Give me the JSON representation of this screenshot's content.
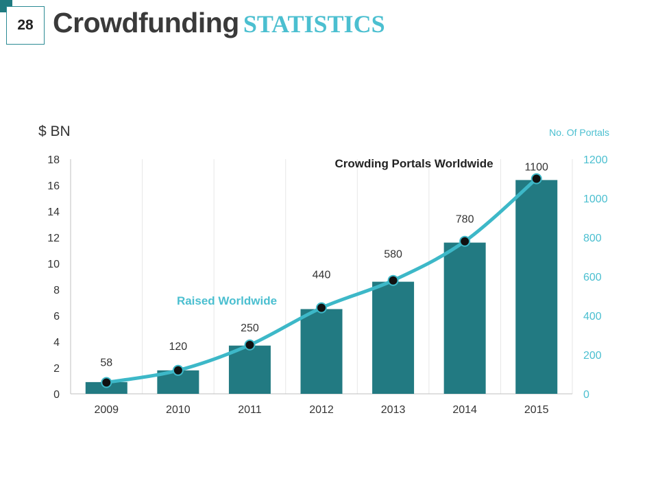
{
  "page": {
    "number": "28",
    "title_main": "Crowdfunding",
    "title_accent": "STATISTICS"
  },
  "colors": {
    "bar": "#227a82",
    "line": "#3db8c8",
    "marker": "#111111",
    "accent": "#4bbfd0",
    "text": "#333333",
    "grid": "#e6e6e6"
  },
  "chart_data": {
    "type": "bar",
    "title": "",
    "categories": [
      "2009",
      "2010",
      "2011",
      "2012",
      "2013",
      "2014",
      "2015"
    ],
    "series": [
      {
        "name": "Raised Worldwide",
        "type": "bar",
        "axis": "left",
        "values": [
          0.9,
          1.8,
          3.7,
          6.5,
          8.6,
          11.6,
          16.4
        ]
      },
      {
        "name": "Crowding Portals Worldwide",
        "type": "line",
        "axis": "right",
        "values": [
          58,
          120,
          250,
          440,
          580,
          780,
          1100
        ],
        "labels": [
          "58",
          "120",
          "250",
          "440",
          "580",
          "780",
          "1100"
        ]
      }
    ],
    "ylabel": "$  BN",
    "ylim": [
      0,
      18
    ],
    "yticks": [
      "0",
      "2",
      "4",
      "6",
      "8",
      "10",
      "12",
      "14",
      "16",
      "18"
    ],
    "y2label": "No. Of  Portals",
    "y2lim": [
      0,
      1200
    ],
    "y2ticks": [
      "0",
      "200",
      "400",
      "600",
      "800",
      "1000",
      "1200"
    ],
    "grid": "vertical",
    "legend": "none"
  }
}
